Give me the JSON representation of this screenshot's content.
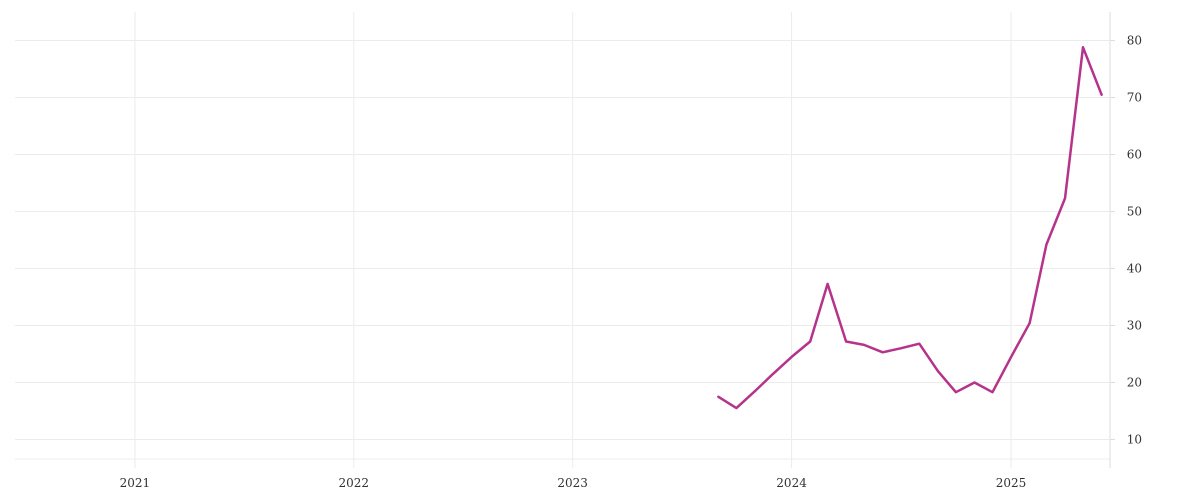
{
  "chart_data": {
    "type": "line",
    "title": "",
    "xlabel": "",
    "ylabel": "",
    "x_ticks": [
      "2021",
      "2022",
      "2023",
      "2024",
      "2025"
    ],
    "y_ticks": [
      10,
      20,
      30,
      40,
      50,
      60,
      70,
      80
    ],
    "xlim": [
      "2020-06-15",
      "2025-06-15"
    ],
    "ylim": [
      5,
      85
    ],
    "y_axis_side": "right",
    "grid": true,
    "legend": "none",
    "series": [
      {
        "color": "#b5338a",
        "points": [
          [
            "2023-09-01",
            17.5
          ],
          [
            "2023-10-01",
            15.5
          ],
          [
            "2023-11-01",
            18.5
          ],
          [
            "2023-12-01",
            21.5
          ],
          [
            "2024-01-01",
            24.5
          ],
          [
            "2024-02-01",
            27.2
          ],
          [
            "2024-03-01",
            37.3
          ],
          [
            "2024-04-01",
            27.2
          ],
          [
            "2024-05-01",
            26.6
          ],
          [
            "2024-06-01",
            25.3
          ],
          [
            "2024-07-01",
            26.0
          ],
          [
            "2024-08-01",
            26.8
          ],
          [
            "2024-09-01",
            22.0
          ],
          [
            "2024-10-01",
            18.3
          ],
          [
            "2024-11-01",
            20.0
          ],
          [
            "2024-12-01",
            18.3
          ],
          [
            "2025-01-01",
            24.5
          ],
          [
            "2025-02-01",
            30.4
          ],
          [
            "2025-03-01",
            44.2
          ],
          [
            "2025-04-01",
            52.3
          ],
          [
            "2025-05-01",
            78.8
          ],
          [
            "2025-06-01",
            70.5
          ]
        ]
      }
    ]
  }
}
